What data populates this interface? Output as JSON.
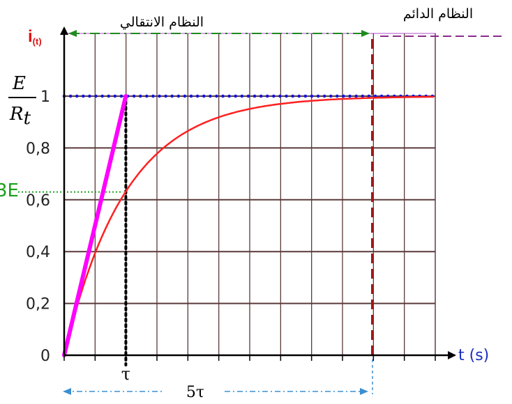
{
  "chart_data": {
    "type": "line",
    "title": "",
    "xlabel": "t (s)",
    "ylabel": "i(t)",
    "ylabel_main": "i",
    "ylabel_sub": "(t)",
    "ylim": [
      0,
      1
    ],
    "xlim": [
      0,
      6
    ],
    "y_ticks": [
      {
        "value": 0,
        "label": "0"
      },
      {
        "value": 0.2,
        "label": "0,2"
      },
      {
        "value": 0.4,
        "label": "0,4"
      },
      {
        "value": 0.6,
        "label": "0,6"
      },
      {
        "value": 0.8,
        "label": "0,8"
      },
      {
        "value": 1,
        "label": "1"
      }
    ],
    "x_marks": [
      {
        "value": 1,
        "label": "τ"
      },
      {
        "value": 5,
        "label": "5τ"
      }
    ],
    "grid": true,
    "asymptote": {
      "value": 1,
      "label_numerator": "E",
      "label_denominator": "R",
      "label_denominator_sub": "t"
    },
    "tau_marker": {
      "y_value": 0.63,
      "partial_label": "3E"
    },
    "series": [
      {
        "kind": "exponential",
        "formula": "1 - exp(-t/τ)",
        "color": "#ff2020"
      },
      {
        "kind": "tangent",
        "x": [
          0,
          1
        ],
        "y": [
          0,
          1
        ],
        "color": "#ff00ff"
      }
    ],
    "regions": {
      "transient_label": "النظام الانتقالي",
      "steady_label": "النظام الدائم",
      "boundary_x": 5
    },
    "colors": {
      "grid": "#5a3a3a",
      "plot_border": "#cc88dd",
      "curve": "#ff2020",
      "tangent": "#ff00ff",
      "asymptote": "#1515d8",
      "tau_line": "#000000",
      "boundary": "#a01818",
      "transient_arrow": "#1f8a1f",
      "steady_arrow": "#8a2a8a",
      "bottom_arrow": "#3b8fd0",
      "y_axis_title": "#e01010",
      "x_axis_title": "#1a2fc0",
      "tau_marker": "#1aa01a"
    }
  }
}
